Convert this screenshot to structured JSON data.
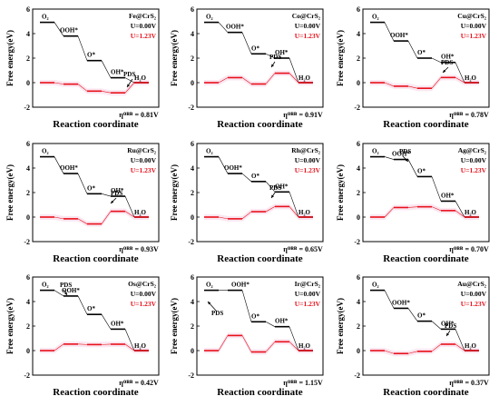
{
  "chart_data": [
    {
      "type": "line",
      "title": "Fe@CrS₂",
      "legend": [
        "U=0.00V",
        "U=1.23V"
      ],
      "ylabel": "Free energy(eV)",
      "xlabel": "Reaction coordinate",
      "ylim": [
        -2,
        6
      ],
      "yticks": [
        "-2",
        "0",
        "2",
        "4",
        "6"
      ],
      "steps": [
        "O₂",
        "OOH*",
        "O*",
        "OH*",
        "H₂O"
      ],
      "u0": [
        4.92,
        3.8,
        1.8,
        0.4,
        0
      ],
      "u123": [
        0,
        -0.12,
        -0.69,
        -0.83,
        0
      ],
      "pds": "PDS",
      "eta": "ηᴼᴿᴿ = 0.81V"
    },
    {
      "type": "line",
      "title": "Co@CrS₂",
      "legend": [
        "U=0.00V",
        "U=1.23V"
      ],
      "ylabel": "Free energy(eV)",
      "xlabel": "Reaction coordinate",
      "ylim": [
        -2,
        6
      ],
      "yticks": [
        "-2",
        "0",
        "2",
        "4",
        "6"
      ],
      "steps": [
        "O₂",
        "OOH*",
        "O*",
        "OH*",
        "H₂O"
      ],
      "u0": [
        4.92,
        4.1,
        2.35,
        2.0,
        0
      ],
      "u123": [
        0,
        0.41,
        -0.11,
        0.77,
        0
      ],
      "pds": "PDS",
      "eta": "ηᴼᴿᴿ = 0.91V"
    },
    {
      "type": "line",
      "title": "Cu@CrS₂",
      "legend": [
        "U=0.00V",
        "U=1.23V"
      ],
      "ylabel": "Free energy(eV)",
      "xlabel": "Reaction coordinate",
      "ylim": [
        -2,
        6
      ],
      "yticks": [
        "-2",
        "0",
        "2",
        "4",
        "6"
      ],
      "steps": [
        "O₂",
        "OOH*",
        "O*",
        "OH*",
        "H₂O"
      ],
      "u0": [
        4.92,
        3.4,
        2.0,
        1.65,
        0
      ],
      "u123": [
        0,
        -0.29,
        -0.46,
        0.42,
        0
      ],
      "pds": "PDS",
      "eta": "ηᴼᴿᴿ = 0.78V"
    },
    {
      "type": "line",
      "title": "Ru@CrS₂",
      "legend": [
        "U=0.00V",
        "U=1.23V"
      ],
      "ylabel": "Free energy(eV)",
      "xlabel": "Reaction coordinate",
      "ylim": [
        -2,
        6
      ],
      "yticks": [
        "-2",
        "0",
        "2",
        "4",
        "6"
      ],
      "steps": [
        "O₂",
        "OOH*",
        "O*",
        "OH*",
        "H₂O"
      ],
      "u0": [
        4.92,
        3.55,
        1.9,
        1.7,
        0
      ],
      "u123": [
        0,
        -0.14,
        -0.56,
        0.47,
        0
      ],
      "pds": "PDS",
      "eta": "ηᴼᴿᴿ = 0.93V"
    },
    {
      "type": "line",
      "title": "Rh@CrS₂",
      "legend": [
        "U=0.00V",
        "U=1.23V"
      ],
      "ylabel": "Free energy(eV)",
      "xlabel": "Reaction coordinate",
      "ylim": [
        -2,
        6
      ],
      "yticks": [
        "-2",
        "0",
        "2",
        "4",
        "6"
      ],
      "steps": [
        "O₂",
        "OOH*",
        "O*",
        "OH*",
        "H₂O"
      ],
      "u0": [
        4.92,
        3.55,
        2.9,
        2.05,
        0
      ],
      "u123": [
        0,
        -0.14,
        0.44,
        0.86,
        0
      ],
      "pds": "PDS",
      "eta": "ηᴼᴿᴿ = 0.65V"
    },
    {
      "type": "line",
      "title": "Ag@CrS₂",
      "legend": [
        "U=0.00V",
        "U=1.23V"
      ],
      "ylabel": "Free energy(eV)",
      "xlabel": "Reaction coordinate",
      "ylim": [
        -2,
        6
      ],
      "yticks": [
        "-2",
        "0",
        "2",
        "4",
        "6"
      ],
      "steps": [
        "O₂",
        "OOH*",
        "O*",
        "OH*",
        "H₂O"
      ],
      "u0": [
        4.92,
        4.7,
        3.3,
        1.3,
        0
      ],
      "u123": [
        0,
        0.78,
        0.84,
        0.53,
        0
      ],
      "pds": "PDS",
      "eta": "ηᴼᴿᴿ = 0.70V"
    },
    {
      "type": "line",
      "title": "Os@CrS₂",
      "legend": [
        "U=0.00V",
        "U=1.23V"
      ],
      "ylabel": "Free energy(eV)",
      "xlabel": "Reaction coordinate",
      "ylim": [
        -2,
        6
      ],
      "yticks": [
        "-2",
        "0",
        "2",
        "4",
        "6"
      ],
      "steps": [
        "O₂",
        "OOH*",
        "O*",
        "OH*",
        "H₂O"
      ],
      "u0": [
        4.92,
        4.45,
        2.95,
        1.75,
        0
      ],
      "u123": [
        0,
        0.53,
        0.49,
        0.52,
        0
      ],
      "pds": "PDS",
      "eta": "ηᴼᴿᴿ = 0.42V"
    },
    {
      "type": "line",
      "title": "Ir@CrS₂",
      "legend": [
        "U=0.00V",
        "U=1.23V"
      ],
      "ylabel": "Free energy(eV)",
      "xlabel": "Reaction coordinate",
      "ylim": [
        -2,
        6
      ],
      "yticks": [
        "-2",
        "0",
        "2",
        "4",
        "6"
      ],
      "steps": [
        "O₂",
        "OOH*",
        "O*",
        "OH*",
        "H₂O"
      ],
      "u0": [
        4.92,
        4.92,
        2.35,
        1.95,
        0
      ],
      "u123": [
        0,
        1.23,
        -0.11,
        0.72,
        0
      ],
      "pds": "PDS",
      "eta": "ηᴼᴿᴿ = 1.15V"
    },
    {
      "type": "line",
      "title": "Au@CrS₂",
      "legend": [
        "U=0.00V",
        "U=1.23V"
      ],
      "ylabel": "Free energy(eV)",
      "xlabel": "Reaction coordinate",
      "ylim": [
        -2,
        6
      ],
      "yticks": [
        "-2",
        "0",
        "2",
        "4",
        "6"
      ],
      "steps": [
        "O₂",
        "OOH*",
        "O*",
        "OH*",
        "H₂O"
      ],
      "u0": [
        4.92,
        3.45,
        2.4,
        1.75,
        0
      ],
      "u123": [
        0,
        -0.24,
        -0.06,
        0.52,
        0
      ],
      "pds": "PDS",
      "eta": "ηᴼᴿᴿ = 0.37V"
    }
  ]
}
